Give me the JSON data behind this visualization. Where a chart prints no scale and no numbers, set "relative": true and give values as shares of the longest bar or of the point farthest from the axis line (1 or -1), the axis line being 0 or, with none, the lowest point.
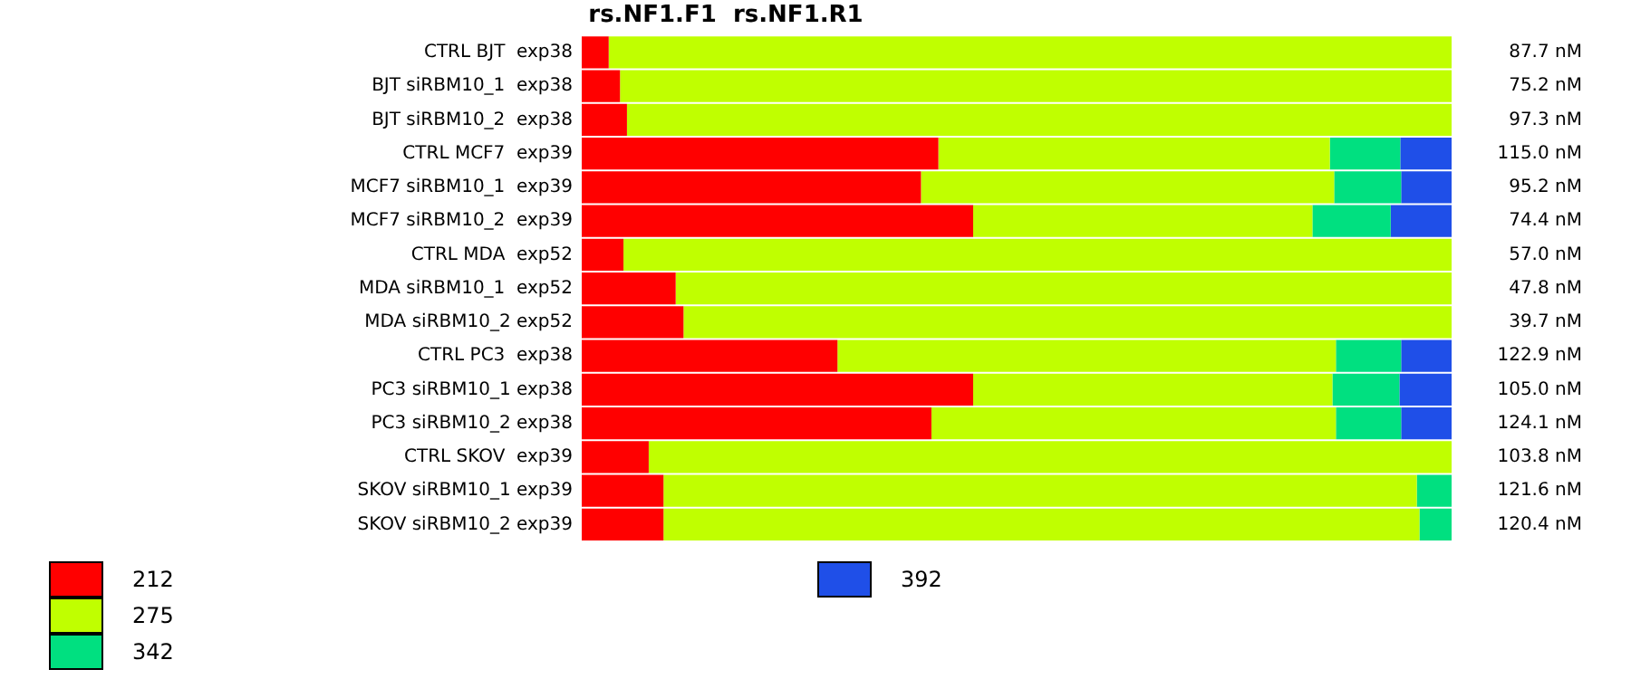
{
  "chart_data": {
    "type": "bar",
    "orientation": "horizontal",
    "stacked": true,
    "relative": true,
    "title": "rs.NF1.F1  rs.NF1.R1",
    "categories": [
      "CTRL BJT  exp38",
      "BJT siRBM10_1  exp38",
      "BJT siRBM10_2  exp38",
      "CTRL MCF7  exp39",
      "MCF7 siRBM10_1  exp39",
      "MCF7 siRBM10_2  exp39",
      "CTRL MDA  exp52",
      "MDA siRBM10_1  exp52",
      "MDA siRBM10_2 exp52",
      "CTRL PC3  exp38",
      "PC3 siRBM10_1 exp38",
      "PC3 siRBM10_2 exp38",
      "CTRL SKOV  exp39",
      "SKOV siRBM10_1 exp39",
      "SKOV siRBM10_2 exp39"
    ],
    "series": [
      {
        "name": "212",
        "color": "#ff0000",
        "values": [
          0.031,
          0.044,
          0.052,
          0.41,
          0.39,
          0.45,
          0.048,
          0.108,
          0.117,
          0.294,
          0.45,
          0.402,
          0.077,
          0.094,
          0.094
        ]
      },
      {
        "name": "275",
        "color": "#c0ff00",
        "values": [
          0.969,
          0.956,
          0.948,
          0.45,
          0.475,
          0.39,
          0.952,
          0.892,
          0.883,
          0.573,
          0.413,
          0.465,
          0.923,
          0.866,
          0.869
        ]
      },
      {
        "name": "342",
        "color": "#00e080",
        "values": [
          null,
          null,
          null,
          0.081,
          0.077,
          0.09,
          null,
          null,
          null,
          0.075,
          0.077,
          0.075,
          null,
          0.04,
          0.037
        ]
      },
      {
        "name": "392",
        "color": "#1f4fe8",
        "values": [
          null,
          null,
          null,
          0.059,
          0.058,
          0.07,
          null,
          null,
          null,
          0.058,
          0.06,
          0.058,
          null,
          null,
          null
        ]
      }
    ],
    "annotations": [
      "87.7 nM",
      "75.2 nM",
      "97.3 nM",
      "115.0 nM",
      "95.2 nM",
      "74.4 nM",
      "57.0 nM",
      "47.8 nM",
      "39.7 nM",
      "122.9 nM",
      "105.0 nM",
      "124.1 nM",
      "103.8 nM",
      "121.6 nM",
      "120.4 nM"
    ],
    "legend": "bottom",
    "grid": false
  }
}
